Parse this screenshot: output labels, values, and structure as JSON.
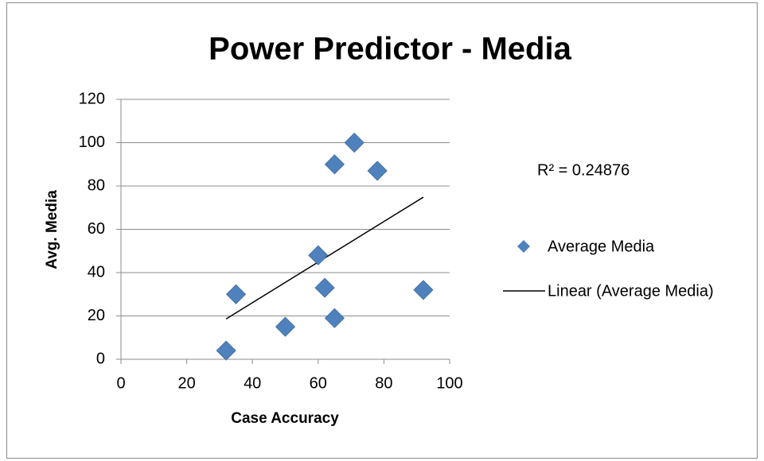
{
  "chart_data": {
    "type": "scatter",
    "title": "Power Predictor - Media",
    "x_label": "Case Accuracy",
    "y_label": "Avg. Media",
    "series": [
      {
        "name": "Average Media",
        "color": "#4f81bd",
        "x": [
          32,
          35,
          50,
          60,
          62,
          65,
          65,
          71,
          78,
          92
        ],
        "values": [
          4,
          30,
          15,
          48,
          33,
          19,
          90,
          100,
          87,
          32
        ]
      }
    ],
    "trendline": {
      "name": "Linear (Average Media)",
      "color": "#000000"
    },
    "annotation": "R² = 0.24876",
    "xlim": [
      0,
      100
    ],
    "xticks": [
      0,
      20,
      40,
      60,
      80,
      100
    ],
    "ylim": [
      0,
      120
    ],
    "yticks": [
      0,
      20,
      40,
      60,
      80,
      100,
      120
    ],
    "grid": true,
    "legend": "right"
  }
}
